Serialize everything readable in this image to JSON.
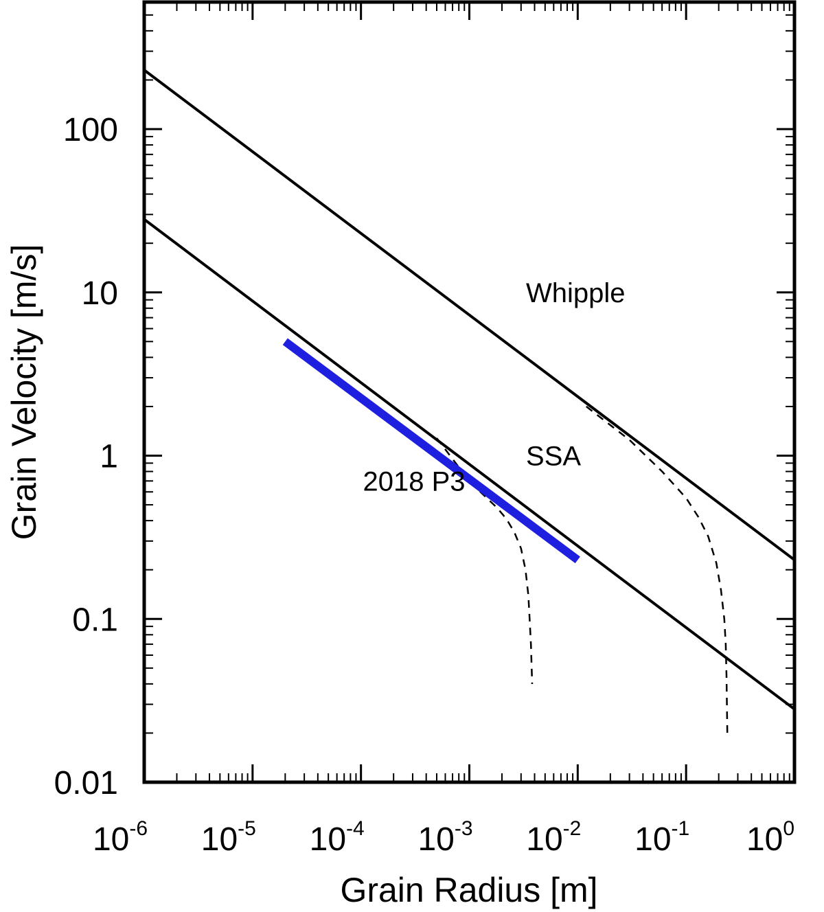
{
  "chart_data": {
    "type": "line",
    "title": "",
    "xlabel": "Grain Radius [m]",
    "ylabel": "Grain Velocity [m/s]",
    "xscale": "log",
    "yscale": "log",
    "xlim": [
      1e-06,
      1
    ],
    "ylim": [
      0.01,
      600
    ],
    "grid": false,
    "x_ticks": [
      {
        "value": 1e-06,
        "base": "10",
        "exp": "-6"
      },
      {
        "value": 1e-05,
        "base": "10",
        "exp": "-5"
      },
      {
        "value": 0.0001,
        "base": "10",
        "exp": "-4"
      },
      {
        "value": 0.001,
        "base": "10",
        "exp": "-3"
      },
      {
        "value": 0.01,
        "base": "10",
        "exp": "-2"
      },
      {
        "value": 0.1,
        "base": "10",
        "exp": "-1"
      },
      {
        "value": 1,
        "base": "10",
        "exp": "0"
      }
    ],
    "y_ticks": [
      {
        "value": 0.01,
        "label": "0.01"
      },
      {
        "value": 0.1,
        "label": "0.1"
      },
      {
        "value": 1,
        "label": "1"
      },
      {
        "value": 10,
        "label": "10"
      },
      {
        "value": 100,
        "label": "100"
      }
    ],
    "series": [
      {
        "name": "Whipple",
        "style": "solid",
        "color": "#000000",
        "x": [
          1e-06,
          1
        ],
        "y": [
          230,
          0.23
        ]
      },
      {
        "name": "SSA",
        "style": "solid",
        "color": "#000000",
        "x": [
          1e-06,
          1
        ],
        "y": [
          28,
          0.028
        ]
      },
      {
        "name": "Whipple (dashed)",
        "style": "dashed",
        "color": "#000000",
        "x": [
          0.012,
          0.03,
          0.06,
          0.1,
          0.13,
          0.16,
          0.19,
          0.21,
          0.225,
          0.232,
          0.236,
          0.238,
          0.24
        ],
        "y": [
          2.0,
          1.25,
          0.8,
          0.55,
          0.42,
          0.32,
          0.22,
          0.15,
          0.1,
          0.07,
          0.045,
          0.03,
          0.02
        ]
      },
      {
        "name": "SSA (dashed)",
        "style": "dashed",
        "color": "#000000",
        "x": [
          0.0005,
          0.0008,
          0.0012,
          0.0018,
          0.0022,
          0.0026,
          0.003,
          0.0033,
          0.0035,
          0.0036,
          0.0037,
          0.0038
        ],
        "y": [
          1.28,
          0.85,
          0.62,
          0.48,
          0.41,
          0.34,
          0.27,
          0.2,
          0.14,
          0.1,
          0.07,
          0.04
        ]
      },
      {
        "name": "2018 P3",
        "style": "thick",
        "color": "#1f1fe0",
        "x": [
          2e-05,
          0.01
        ],
        "y": [
          5.0,
          0.23
        ]
      }
    ],
    "annotations": [
      {
        "text": "Whipple",
        "x": 0.008,
        "y": 10
      },
      {
        "text": "SSA",
        "x": 0.008,
        "y": 1
      },
      {
        "text": "2018 P3",
        "x": 0.00025,
        "y": 0.7
      }
    ]
  }
}
